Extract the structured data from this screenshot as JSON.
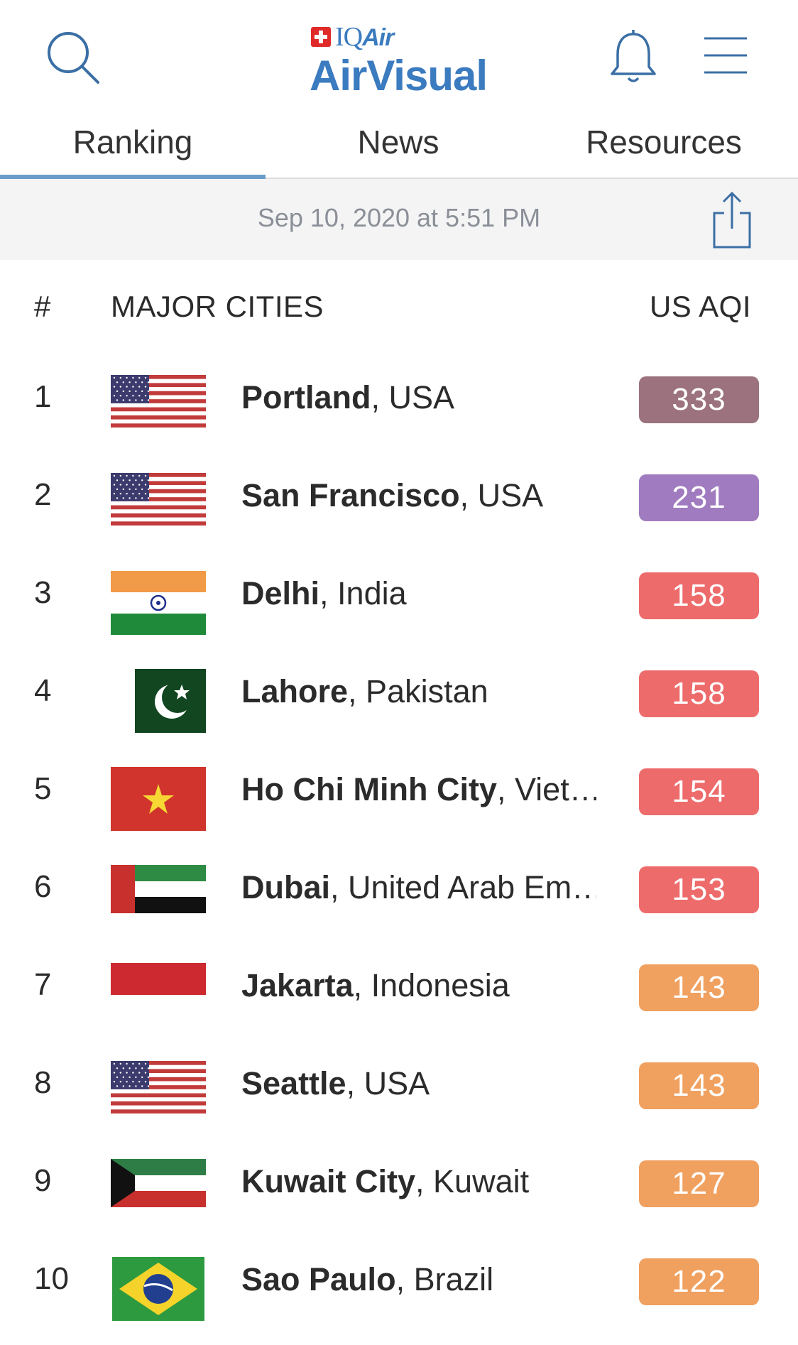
{
  "header": {
    "logo_top": "IQ",
    "logo_top_italic": "Air",
    "logo_main": "AirVisual",
    "icons": {
      "search": "search-icon",
      "bell": "bell-icon",
      "menu": "hamburger-menu-icon",
      "share": "share-icon"
    }
  },
  "tabs": [
    {
      "label": "Ranking",
      "active": true
    },
    {
      "label": "News",
      "active": false
    },
    {
      "label": "Resources",
      "active": false
    }
  ],
  "date_bar": {
    "timestamp": "Sep 10, 2020 at 5:51 PM"
  },
  "table": {
    "columns": {
      "rank": "#",
      "city": "MAJOR CITIES",
      "aqi": "US AQI"
    },
    "rows": [
      {
        "rank": "1",
        "city": "Portland",
        "country": "USA",
        "aqi": "333",
        "color": "#9b727d",
        "flag": "usa"
      },
      {
        "rank": "2",
        "city": "San Francisco",
        "country": "USA",
        "aqi": "231",
        "color": "#a07bbf",
        "flag": "usa"
      },
      {
        "rank": "3",
        "city": "Delhi",
        "country": "India",
        "aqi": "158",
        "color": "#ee6b6b",
        "flag": "india"
      },
      {
        "rank": "4",
        "city": "Lahore",
        "country": "Pakistan",
        "aqi": "158",
        "color": "#ee6b6b",
        "flag": "pakistan"
      },
      {
        "rank": "5",
        "city": "Ho Chi Minh City",
        "country": "Viet…",
        "aqi": "154",
        "color": "#ee6b6b",
        "flag": "vietnam"
      },
      {
        "rank": "6",
        "city": "Dubai",
        "country": "United Arab Em…",
        "aqi": "153",
        "color": "#ee6b6b",
        "flag": "uae"
      },
      {
        "rank": "7",
        "city": "Jakarta",
        "country": "Indonesia",
        "aqi": "143",
        "color": "#f0a05f",
        "flag": "indonesia"
      },
      {
        "rank": "8",
        "city": "Seattle",
        "country": "USA",
        "aqi": "143",
        "color": "#f0a05f",
        "flag": "usa"
      },
      {
        "rank": "9",
        "city": "Kuwait City",
        "country": "Kuwait",
        "aqi": "127",
        "color": "#f0a05f",
        "flag": "kuwait"
      },
      {
        "rank": "10",
        "city": "Sao Paulo",
        "country": "Brazil",
        "aqi": "122",
        "color": "#f0a05f",
        "flag": "brazil"
      }
    ]
  }
}
